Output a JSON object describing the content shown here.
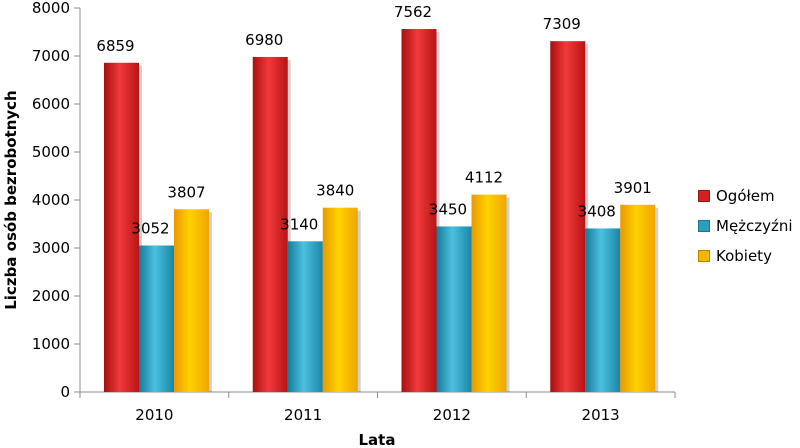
{
  "chart_data": {
    "type": "bar",
    "title": "",
    "xlabel": "Lata",
    "ylabel": "Liczba osób bezrobotnych",
    "categories": [
      "2010",
      "2011",
      "2012",
      "2013"
    ],
    "ylim": [
      0,
      8000
    ],
    "yticks": [
      "0",
      "1000",
      "2000",
      "3000",
      "4000",
      "5000",
      "6000",
      "7000",
      "8000"
    ],
    "grid": false,
    "legend_position": "right",
    "series": [
      {
        "name": "Ogółem",
        "values": [
          6859,
          6980,
          7562,
          7309
        ],
        "labels": [
          "6859",
          "6980",
          "7562",
          "7309"
        ],
        "color": "#d42020"
      },
      {
        "name": "Mężczyźni",
        "values": [
          3052,
          3140,
          3450,
          3408
        ],
        "labels": [
          "3052",
          "3140",
          "3450",
          "3408"
        ],
        "color": "#2aa0c0"
      },
      {
        "name": "Kobiety",
        "values": [
          3807,
          3840,
          4112,
          3901
        ],
        "labels": [
          "3807",
          "3840",
          "4112",
          "3901"
        ],
        "color": "#f5b400"
      }
    ]
  }
}
